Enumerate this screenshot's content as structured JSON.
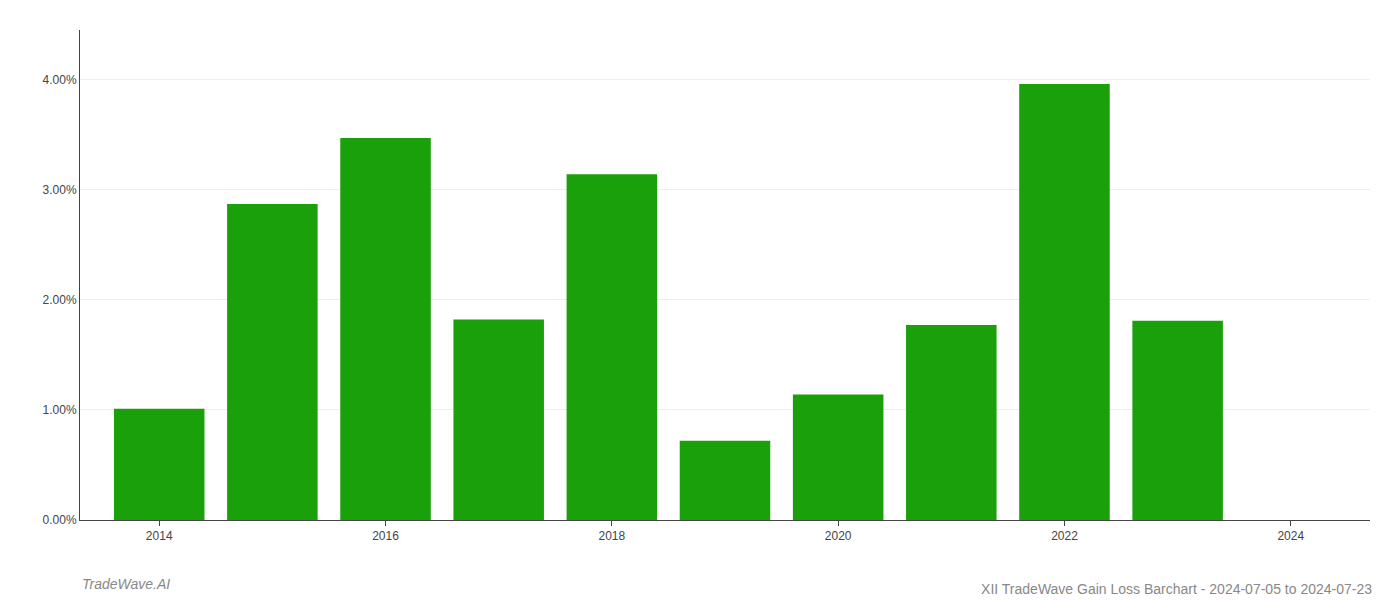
{
  "chart_data": {
    "type": "bar",
    "title": "XII TradeWave Gain Loss Barchart - 2024-07-05 to 2024-07-23",
    "annotations": [
      "TradeWave.AI"
    ],
    "x": [
      2014,
      2015,
      2016,
      2017,
      2018,
      2019,
      2020,
      2021,
      2022,
      2023
    ],
    "values": [
      0.0101,
      0.0287,
      0.0347,
      0.0182,
      0.0314,
      0.0072,
      0.0114,
      0.0177,
      0.0396,
      0.0181
    ],
    "color": "#1aa00a",
    "xlim": [
      2013.3,
      2024.7
    ],
    "xticks": [
      2014,
      2016,
      2018,
      2020,
      2022,
      2024
    ],
    "ylim": [
      0,
      0.0445
    ],
    "yticks": [
      {
        "value": 0.0,
        "label": "0.00%"
      },
      {
        "value": 0.01,
        "label": "1.00%"
      },
      {
        "value": 0.02,
        "label": "2.00%"
      },
      {
        "value": 0.03,
        "label": "3.00%"
      },
      {
        "value": 0.04,
        "label": "4.00%"
      }
    ],
    "grid": true
  }
}
